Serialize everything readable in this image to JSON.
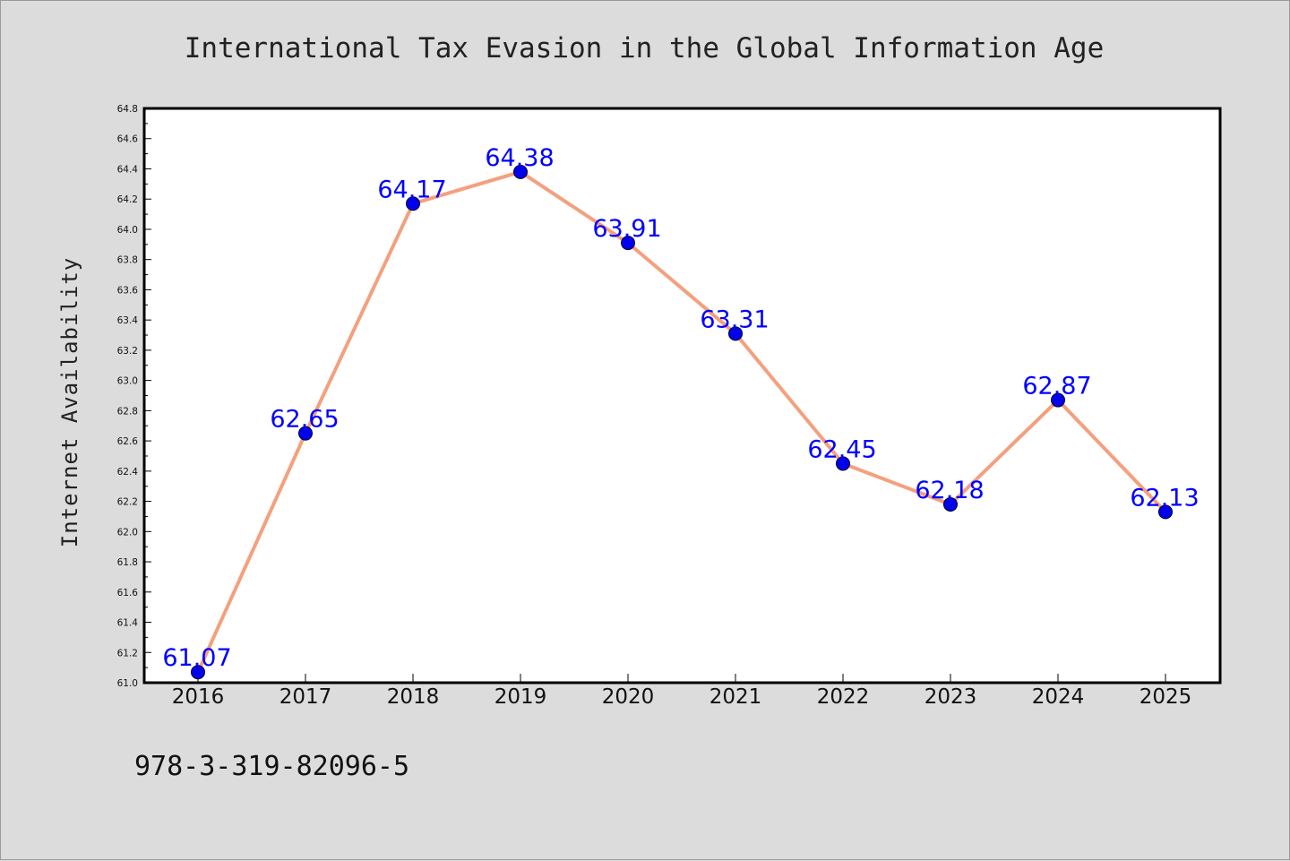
{
  "chart_data": {
    "type": "line",
    "title": "International Tax Evasion in the Global Information Age",
    "xlabel": "",
    "ylabel": "Internet Availability",
    "categories": [
      "2016",
      "2017",
      "2018",
      "2019",
      "2020",
      "2021",
      "2022",
      "2023",
      "2024",
      "2025"
    ],
    "series": [
      {
        "values": [
          61.07,
          62.65,
          64.17,
          64.38,
          63.91,
          63.31,
          62.45,
          62.18,
          62.87,
          62.13
        ]
      }
    ],
    "data_labels": [
      "61.07",
      "62.65",
      "64.17",
      "64.38",
      "63.91",
      "63.31",
      "62.45",
      "62.18",
      "62.87",
      "62.13"
    ],
    "ylim": [
      61.0,
      64.8
    ],
    "yticks": [
      "61.0",
      "61.2",
      "61.4",
      "61.6",
      "61.8",
      "62.0",
      "62.2",
      "62.4",
      "62.6",
      "62.8",
      "63.0",
      "63.2",
      "63.4",
      "63.6",
      "63.8",
      "64.0",
      "64.2",
      "64.4",
      "64.6",
      "64.8"
    ],
    "grid": false,
    "legend": "none",
    "colors": {
      "line": "#f4a07e",
      "marker": "#0000ee",
      "data_label": "#0000ff",
      "plot_bg": "#ffffff",
      "figure_bg": "#dcdcdc"
    }
  },
  "footer_text": "978-3-319-82096-5"
}
